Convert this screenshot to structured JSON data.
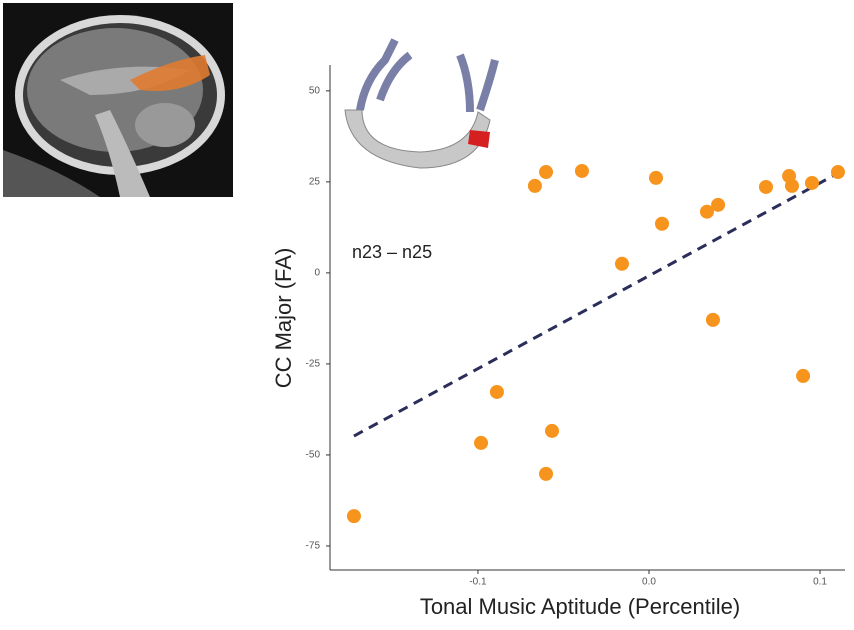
{
  "chart_data": {
    "type": "scatter",
    "x_label": "Tonal Music Aptitude (Percentile)",
    "y_label": "CC Major (FA)",
    "annotation": "n23 – n25",
    "xlim": [
      -0.1865,
      0.1146
    ],
    "ylim": [
      -81.6,
      57.1
    ],
    "xticks": [
      -0.1,
      {
        "value": 0,
        "label": "0.0"
      },
      0.1
    ],
    "yticks": [
      50,
      25,
      0,
      -25,
      -50,
      -75
    ],
    "grid": false,
    "series": [
      {
        "color": "#f7941d",
        "x": [
          -0.1725,
          -0.0982,
          -0.0889,
          -0.0602,
          -0.0567,
          -0.0667,
          -0.0602,
          -0.0392,
          -0.0158,
          0.0041,
          0.0076,
          0.0339,
          0.0404,
          0.0374,
          0.0684,
          0.0819,
          0.0836,
          0.0953,
          0.1105,
          0.0901
        ],
        "values": [
          -66.8,
          -46.7,
          -32.7,
          -55.2,
          -43.4,
          23.9,
          27.7,
          28.0,
          2.5,
          26.1,
          13.5,
          16.8,
          18.7,
          -12.9,
          23.6,
          26.6,
          23.9,
          24.7,
          27.7,
          -28.3
        ]
      }
    ],
    "trend_line": {
      "color": "#2b2d5a",
      "x": [
        -0.1725,
        0.1117
      ],
      "values": [
        -44.8,
        27.7
      ]
    }
  }
}
